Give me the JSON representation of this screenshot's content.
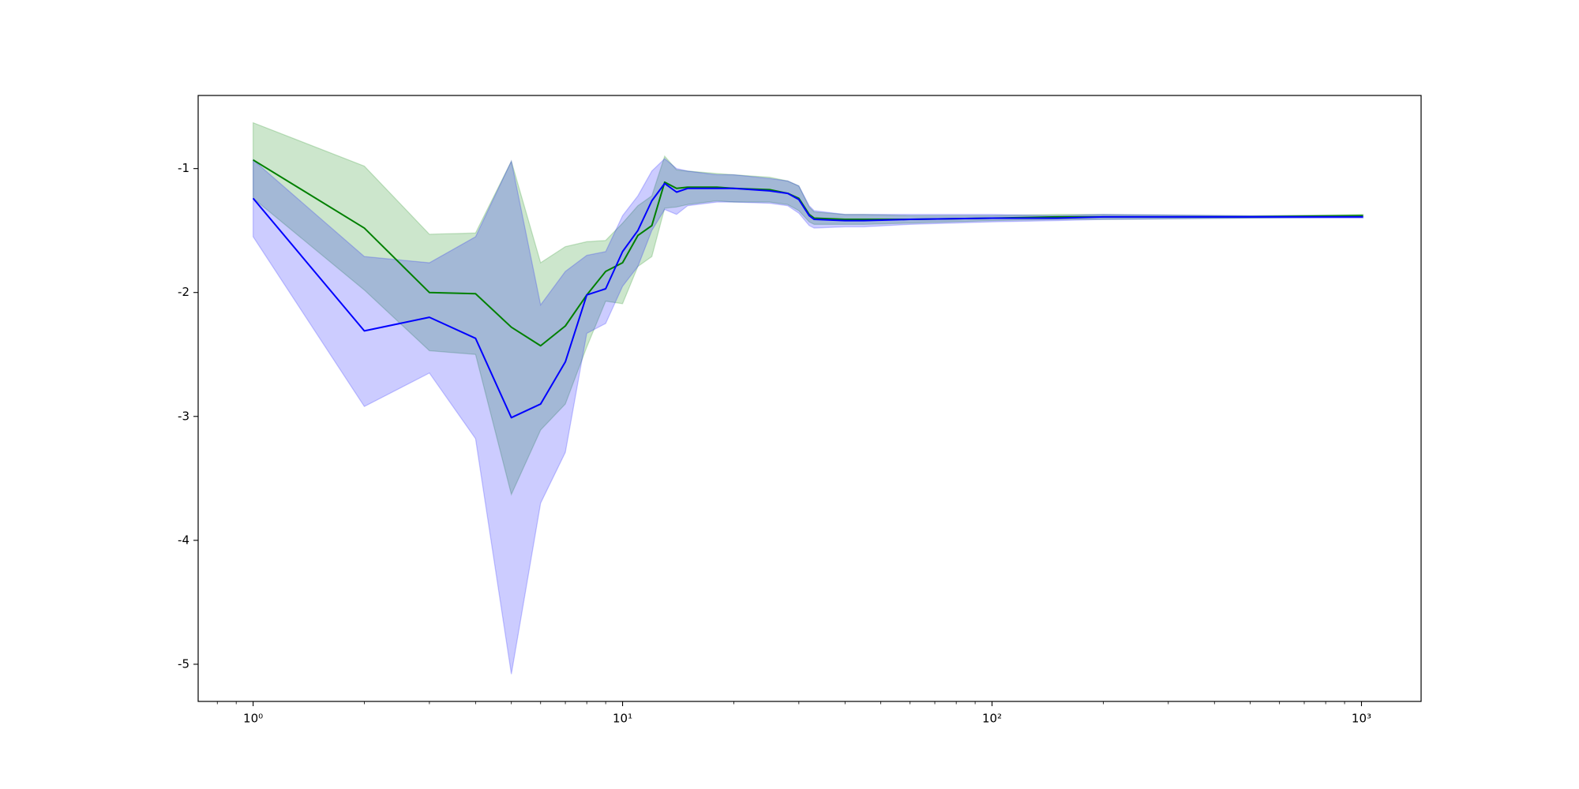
{
  "chart_data": {
    "type": "line",
    "x": [
      1,
      2,
      3,
      4,
      5,
      6,
      7,
      8,
      9,
      10,
      11,
      12,
      13,
      14,
      15,
      18,
      20,
      25,
      28,
      30,
      32,
      33,
      40,
      45,
      60,
      100,
      150,
      200,
      500,
      1010
    ],
    "series": [
      {
        "color": "#008000",
        "band_alpha": 0.2,
        "values": [
          -0.93,
          -1.48,
          -2.0,
          -2.01,
          -2.28,
          -2.43,
          -2.27,
          -2.02,
          -1.83,
          -1.76,
          -1.54,
          -1.46,
          -1.11,
          -1.16,
          -1.15,
          -1.15,
          -1.16,
          -1.17,
          -1.2,
          -1.24,
          -1.37,
          -1.4,
          -1.41,
          -1.41,
          -1.41,
          -1.4,
          -1.39,
          -1.39,
          -1.39,
          -1.38
        ],
        "lower": [
          -1.24,
          -1.98,
          -2.47,
          -2.5,
          -3.63,
          -3.11,
          -2.9,
          -2.44,
          -2.07,
          -2.09,
          -1.79,
          -1.71,
          -1.32,
          -1.31,
          -1.29,
          -1.26,
          -1.27,
          -1.27,
          -1.29,
          -1.34,
          -1.43,
          -1.45,
          -1.45,
          -1.45,
          -1.44,
          -1.42,
          -1.41,
          -1.41,
          -1.4,
          -1.39
        ],
        "upper": [
          -0.63,
          -0.98,
          -1.53,
          -1.52,
          -0.94,
          -1.76,
          -1.63,
          -1.59,
          -1.58,
          -1.44,
          -1.3,
          -1.22,
          -0.9,
          -1.01,
          -1.02,
          -1.04,
          -1.05,
          -1.07,
          -1.1,
          -1.14,
          -1.31,
          -1.35,
          -1.37,
          -1.37,
          -1.38,
          -1.38,
          -1.37,
          -1.37,
          -1.38,
          -1.37
        ]
      },
      {
        "color": "#0000ff",
        "band_alpha": 0.2,
        "values": [
          -1.24,
          -2.31,
          -2.2,
          -2.37,
          -3.01,
          -2.9,
          -2.56,
          -2.02,
          -1.97,
          -1.67,
          -1.5,
          -1.26,
          -1.12,
          -1.19,
          -1.16,
          -1.16,
          -1.16,
          -1.18,
          -1.2,
          -1.25,
          -1.38,
          -1.41,
          -1.42,
          -1.42,
          -1.41,
          -1.4,
          -1.4,
          -1.39,
          -1.39,
          -1.39
        ],
        "lower": [
          -1.55,
          -2.92,
          -2.65,
          -3.18,
          -5.08,
          -3.7,
          -3.29,
          -2.33,
          -2.25,
          -1.95,
          -1.79,
          -1.5,
          -1.33,
          -1.37,
          -1.3,
          -1.27,
          -1.27,
          -1.28,
          -1.3,
          -1.36,
          -1.46,
          -1.48,
          -1.47,
          -1.47,
          -1.45,
          -1.43,
          -1.42,
          -1.41,
          -1.4,
          -1.4
        ],
        "upper": [
          -0.93,
          -1.71,
          -1.76,
          -1.55,
          -0.94,
          -2.1,
          -1.83,
          -1.7,
          -1.67,
          -1.38,
          -1.22,
          -1.02,
          -0.92,
          -1.0,
          -1.02,
          -1.05,
          -1.05,
          -1.08,
          -1.1,
          -1.14,
          -1.3,
          -1.34,
          -1.37,
          -1.37,
          -1.37,
          -1.37,
          -1.38,
          -1.37,
          -1.38,
          -1.38
        ]
      }
    ],
    "xscale": "log",
    "xlim": [
      0.71,
      1450
    ],
    "xticks": [
      {
        "value": 1,
        "label": "10⁰"
      },
      {
        "value": 10,
        "label": "10¹"
      },
      {
        "value": 100,
        "label": "10²"
      },
      {
        "value": 1000,
        "label": "10³"
      }
    ],
    "xminorticks": [
      0.8,
      0.9,
      2,
      3,
      4,
      5,
      6,
      7,
      8,
      9,
      20,
      30,
      40,
      50,
      60,
      70,
      80,
      90,
      200,
      300,
      400,
      500,
      600,
      700,
      800,
      900
    ],
    "ylim": [
      -5.3,
      -0.41
    ],
    "yticks": [
      -5,
      -4,
      -3,
      -2,
      -1
    ],
    "grid": false
  }
}
